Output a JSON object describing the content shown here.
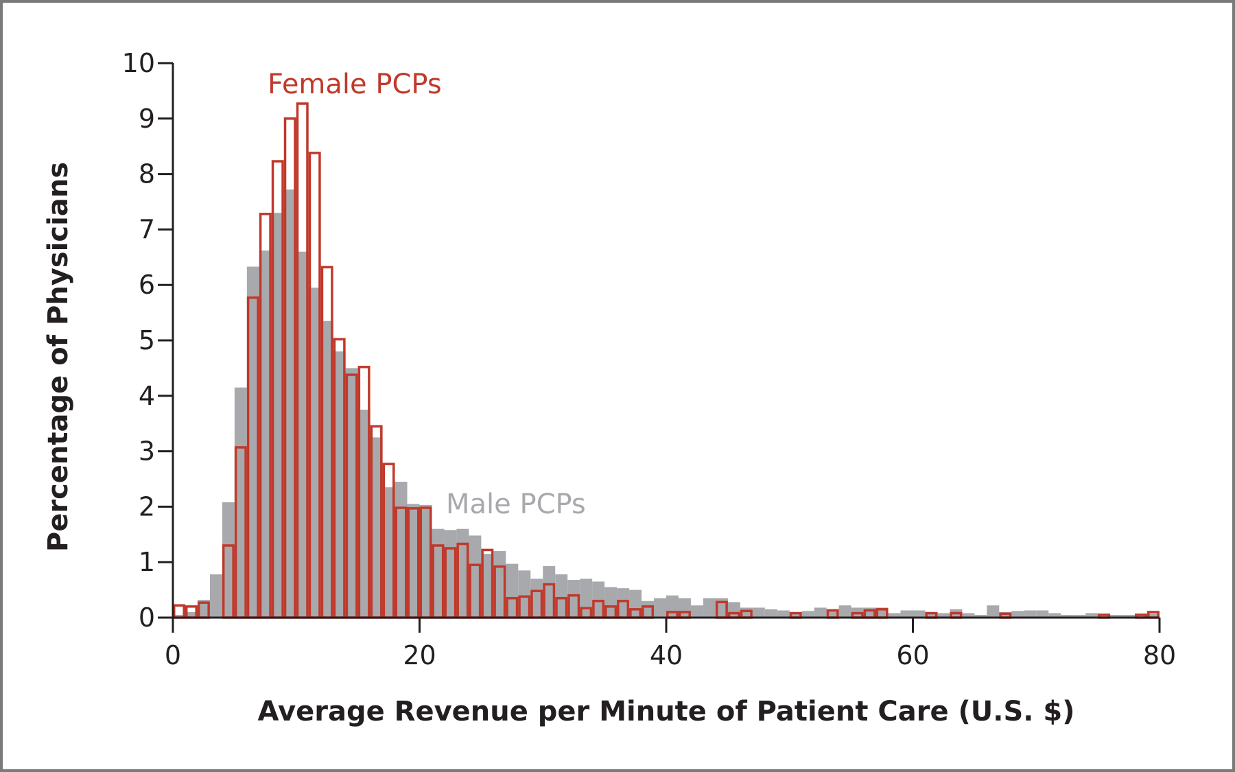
{
  "chart_data": {
    "type": "bar",
    "title": "",
    "xlabel": "Average Revenue per Minute of Patient Care (U.S. $)",
    "ylabel": "Percentage of Physicians",
    "xlim": [
      0,
      80
    ],
    "ylim": [
      0,
      10
    ],
    "x_ticks": [
      "0",
      "20",
      "40",
      "60",
      "80"
    ],
    "y_ticks": [
      "0",
      "1",
      "2",
      "3",
      "4",
      "5",
      "6",
      "7",
      "8",
      "9",
      "10"
    ],
    "grid": false,
    "legend": "inline labels",
    "bin_width": 1,
    "bin_starts": [
      0,
      1,
      2,
      3,
      4,
      5,
      6,
      7,
      8,
      9,
      10,
      11,
      12,
      13,
      14,
      15,
      16,
      17,
      18,
      19,
      20,
      21,
      22,
      23,
      24,
      25,
      26,
      27,
      28,
      29,
      30,
      31,
      32,
      33,
      34,
      35,
      36,
      37,
      38,
      39,
      40,
      41,
      42,
      43,
      44,
      45,
      46,
      47,
      48,
      49,
      50,
      51,
      52,
      53,
      54,
      55,
      56,
      57,
      58,
      59,
      60,
      61,
      62,
      63,
      64,
      65,
      66,
      67,
      68,
      69,
      70,
      71,
      72,
      73,
      74,
      75,
      76,
      77,
      78,
      79
    ],
    "series": [
      {
        "name": "Male PCPs",
        "style": "filled",
        "color": "#a8a9ad",
        "values": [
          0.05,
          0.1,
          0.32,
          0.78,
          2.08,
          4.15,
          6.33,
          6.62,
          7.3,
          7.72,
          6.6,
          5.95,
          5.35,
          4.8,
          4.5,
          3.75,
          3.25,
          2.35,
          2.45,
          2.05,
          2.03,
          1.6,
          1.58,
          1.6,
          1.48,
          1.15,
          1.2,
          0.97,
          0.85,
          0.7,
          0.93,
          0.78,
          0.68,
          0.7,
          0.65,
          0.55,
          0.53,
          0.5,
          0.3,
          0.35,
          0.4,
          0.35,
          0.22,
          0.35,
          0.35,
          0.28,
          0.18,
          0.18,
          0.15,
          0.13,
          0.1,
          0.12,
          0.18,
          0.15,
          0.22,
          0.18,
          0.18,
          0.18,
          0.08,
          0.13,
          0.13,
          0.1,
          0.08,
          0.15,
          0.08,
          0.05,
          0.22,
          0.1,
          0.12,
          0.13,
          0.13,
          0.08,
          0.05,
          0.05,
          0.08,
          0.07,
          0.05,
          0.05,
          0.07,
          0.07
        ]
      },
      {
        "name": "Female PCPs",
        "style": "outline",
        "color": "#c0392b",
        "values": [
          0.22,
          0.2,
          0.27,
          0,
          1.3,
          3.07,
          5.77,
          7.28,
          8.23,
          9.0,
          9.27,
          8.38,
          6.32,
          5.02,
          4.38,
          4.52,
          3.45,
          2.77,
          1.98,
          1.97,
          1.98,
          1.3,
          1.25,
          1.33,
          0.95,
          1.22,
          0.92,
          0.35,
          0.38,
          0.48,
          0.6,
          0.35,
          0.4,
          0.17,
          0.3,
          0.2,
          0.3,
          0.15,
          0.2,
          0,
          0.1,
          0.1,
          0,
          0,
          0.28,
          0.08,
          0.12,
          0,
          0,
          0,
          0.08,
          0,
          0,
          0.13,
          0,
          0.08,
          0.13,
          0.15,
          0,
          0,
          0,
          0.08,
          0,
          0.08,
          0,
          0,
          0,
          0.07,
          0,
          0,
          0,
          0,
          0,
          0,
          0,
          0.05,
          0,
          0,
          0.05,
          0.1
        ]
      }
    ]
  }
}
